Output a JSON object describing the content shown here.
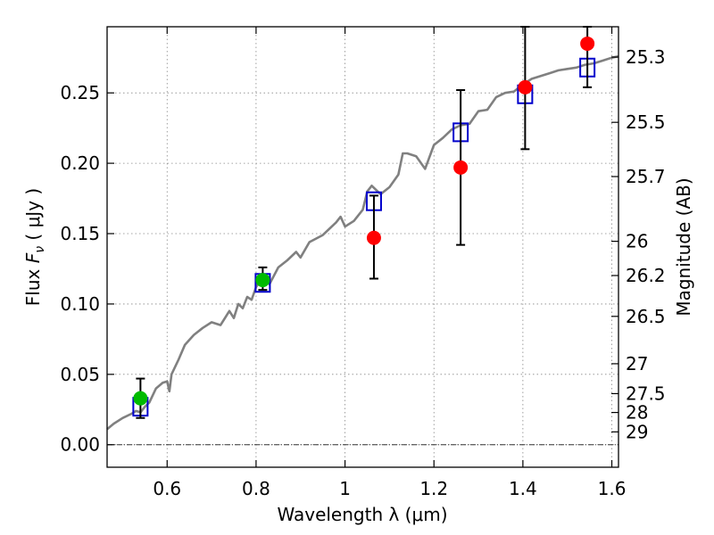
{
  "chart_data": {
    "type": "scatter",
    "title": "",
    "xlabel": "Wavelength  λ (μm)",
    "ylabel": "Flux  F_ν  ( μJy )",
    "ylabel_parts": {
      "pre": "Flux  ",
      "sym": "F",
      "sub": "ν",
      "post": "  ( μJy )"
    },
    "y2label": "Magnitude (AB)",
    "xlim": [
      0.465,
      1.615
    ],
    "ylim": [
      -0.016,
      0.297
    ],
    "grid": true,
    "zero_line": true,
    "x_ticks": [
      {
        "value": 0.6,
        "label": "0.6"
      },
      {
        "value": 0.8,
        "label": "0.8"
      },
      {
        "value": 1.0,
        "label": "1"
      },
      {
        "value": 1.2,
        "label": "1.2"
      },
      {
        "value": 1.4,
        "label": "1.4"
      },
      {
        "value": 1.6,
        "label": "1.6"
      }
    ],
    "y_ticks": [
      {
        "value": 0.0,
        "label": "0.00"
      },
      {
        "value": 0.05,
        "label": "0.05"
      },
      {
        "value": 0.1,
        "label": "0.10"
      },
      {
        "value": 0.15,
        "label": "0.15"
      },
      {
        "value": 0.2,
        "label": "0.20"
      },
      {
        "value": 0.25,
        "label": "0.25"
      }
    ],
    "mag_ticks": [
      {
        "mag": 25.3,
        "label": "25.3"
      },
      {
        "mag": 25.5,
        "label": "25.5"
      },
      {
        "mag": 25.7,
        "label": "25.7"
      },
      {
        "mag": 26.0,
        "label": "26"
      },
      {
        "mag": 26.2,
        "label": "26.2"
      },
      {
        "mag": 26.5,
        "label": "26.5"
      },
      {
        "mag": 27.0,
        "label": "27"
      },
      {
        "mag": 27.5,
        "label": "27.5"
      },
      {
        "mag": 28.0,
        "label": "28"
      },
      {
        "mag": 29.0,
        "label": "29"
      }
    ],
    "colors": {
      "model": "#808080",
      "model_points": "#0000cc",
      "optical": "#00bb00",
      "nir": "#ff0000",
      "errorbar": "#000000",
      "grid": "#888888"
    },
    "model_spectrum": {
      "x": [
        0.465,
        0.48,
        0.5,
        0.52,
        0.53,
        0.54,
        0.55,
        0.56,
        0.575,
        0.59,
        0.6,
        0.605,
        0.61,
        0.625,
        0.64,
        0.66,
        0.68,
        0.7,
        0.72,
        0.74,
        0.75,
        0.76,
        0.77,
        0.78,
        0.79,
        0.8,
        0.81,
        0.82,
        0.83,
        0.85,
        0.87,
        0.89,
        0.9,
        0.92,
        0.95,
        0.98,
        0.99,
        1.0,
        1.02,
        1.04,
        1.05,
        1.06,
        1.08,
        1.1,
        1.12,
        1.13,
        1.14,
        1.16,
        1.18,
        1.2,
        1.22,
        1.24,
        1.26,
        1.28,
        1.3,
        1.32,
        1.34,
        1.36,
        1.38,
        1.4,
        1.42,
        1.44,
        1.46,
        1.48,
        1.5,
        1.52,
        1.54,
        1.56,
        1.58,
        1.6,
        1.615
      ],
      "y": [
        0.011,
        0.015,
        0.019,
        0.022,
        0.024,
        0.023,
        0.027,
        0.03,
        0.04,
        0.044,
        0.045,
        0.038,
        0.05,
        0.06,
        0.071,
        0.078,
        0.083,
        0.087,
        0.085,
        0.095,
        0.09,
        0.1,
        0.097,
        0.105,
        0.103,
        0.112,
        0.117,
        0.119,
        0.114,
        0.126,
        0.131,
        0.137,
        0.133,
        0.144,
        0.149,
        0.158,
        0.162,
        0.155,
        0.159,
        0.167,
        0.18,
        0.184,
        0.178,
        0.183,
        0.192,
        0.207,
        0.207,
        0.205,
        0.196,
        0.213,
        0.218,
        0.224,
        0.227,
        0.228,
        0.237,
        0.238,
        0.247,
        0.25,
        0.251,
        0.256,
        0.26,
        0.262,
        0.264,
        0.266,
        0.267,
        0.268,
        0.27,
        0.271,
        0.273,
        0.275,
        0.276
      ]
    },
    "series": [
      {
        "role": "model_points",
        "marker": "open-square",
        "x": [
          0.54,
          0.815,
          1.065,
          1.26,
          1.405,
          1.545
        ],
        "y": [
          0.027,
          0.115,
          0.173,
          0.222,
          0.249,
          0.268
        ]
      },
      {
        "role": "optical",
        "marker": "filled-circle",
        "x": [
          0.54,
          0.815
        ],
        "y": [
          0.033,
          0.117
        ],
        "err_low": [
          0.019,
          0.11
        ],
        "err_high": [
          0.047,
          0.126
        ]
      },
      {
        "role": "nir",
        "marker": "filled-circle",
        "x": [
          1.065,
          1.26,
          1.405,
          1.545
        ],
        "y": [
          0.147,
          0.197,
          0.254,
          0.285
        ],
        "err_low": [
          0.118,
          0.142,
          0.21,
          0.254
        ],
        "err_high": [
          0.177,
          0.252,
          0.297,
          0.297
        ]
      }
    ]
  }
}
